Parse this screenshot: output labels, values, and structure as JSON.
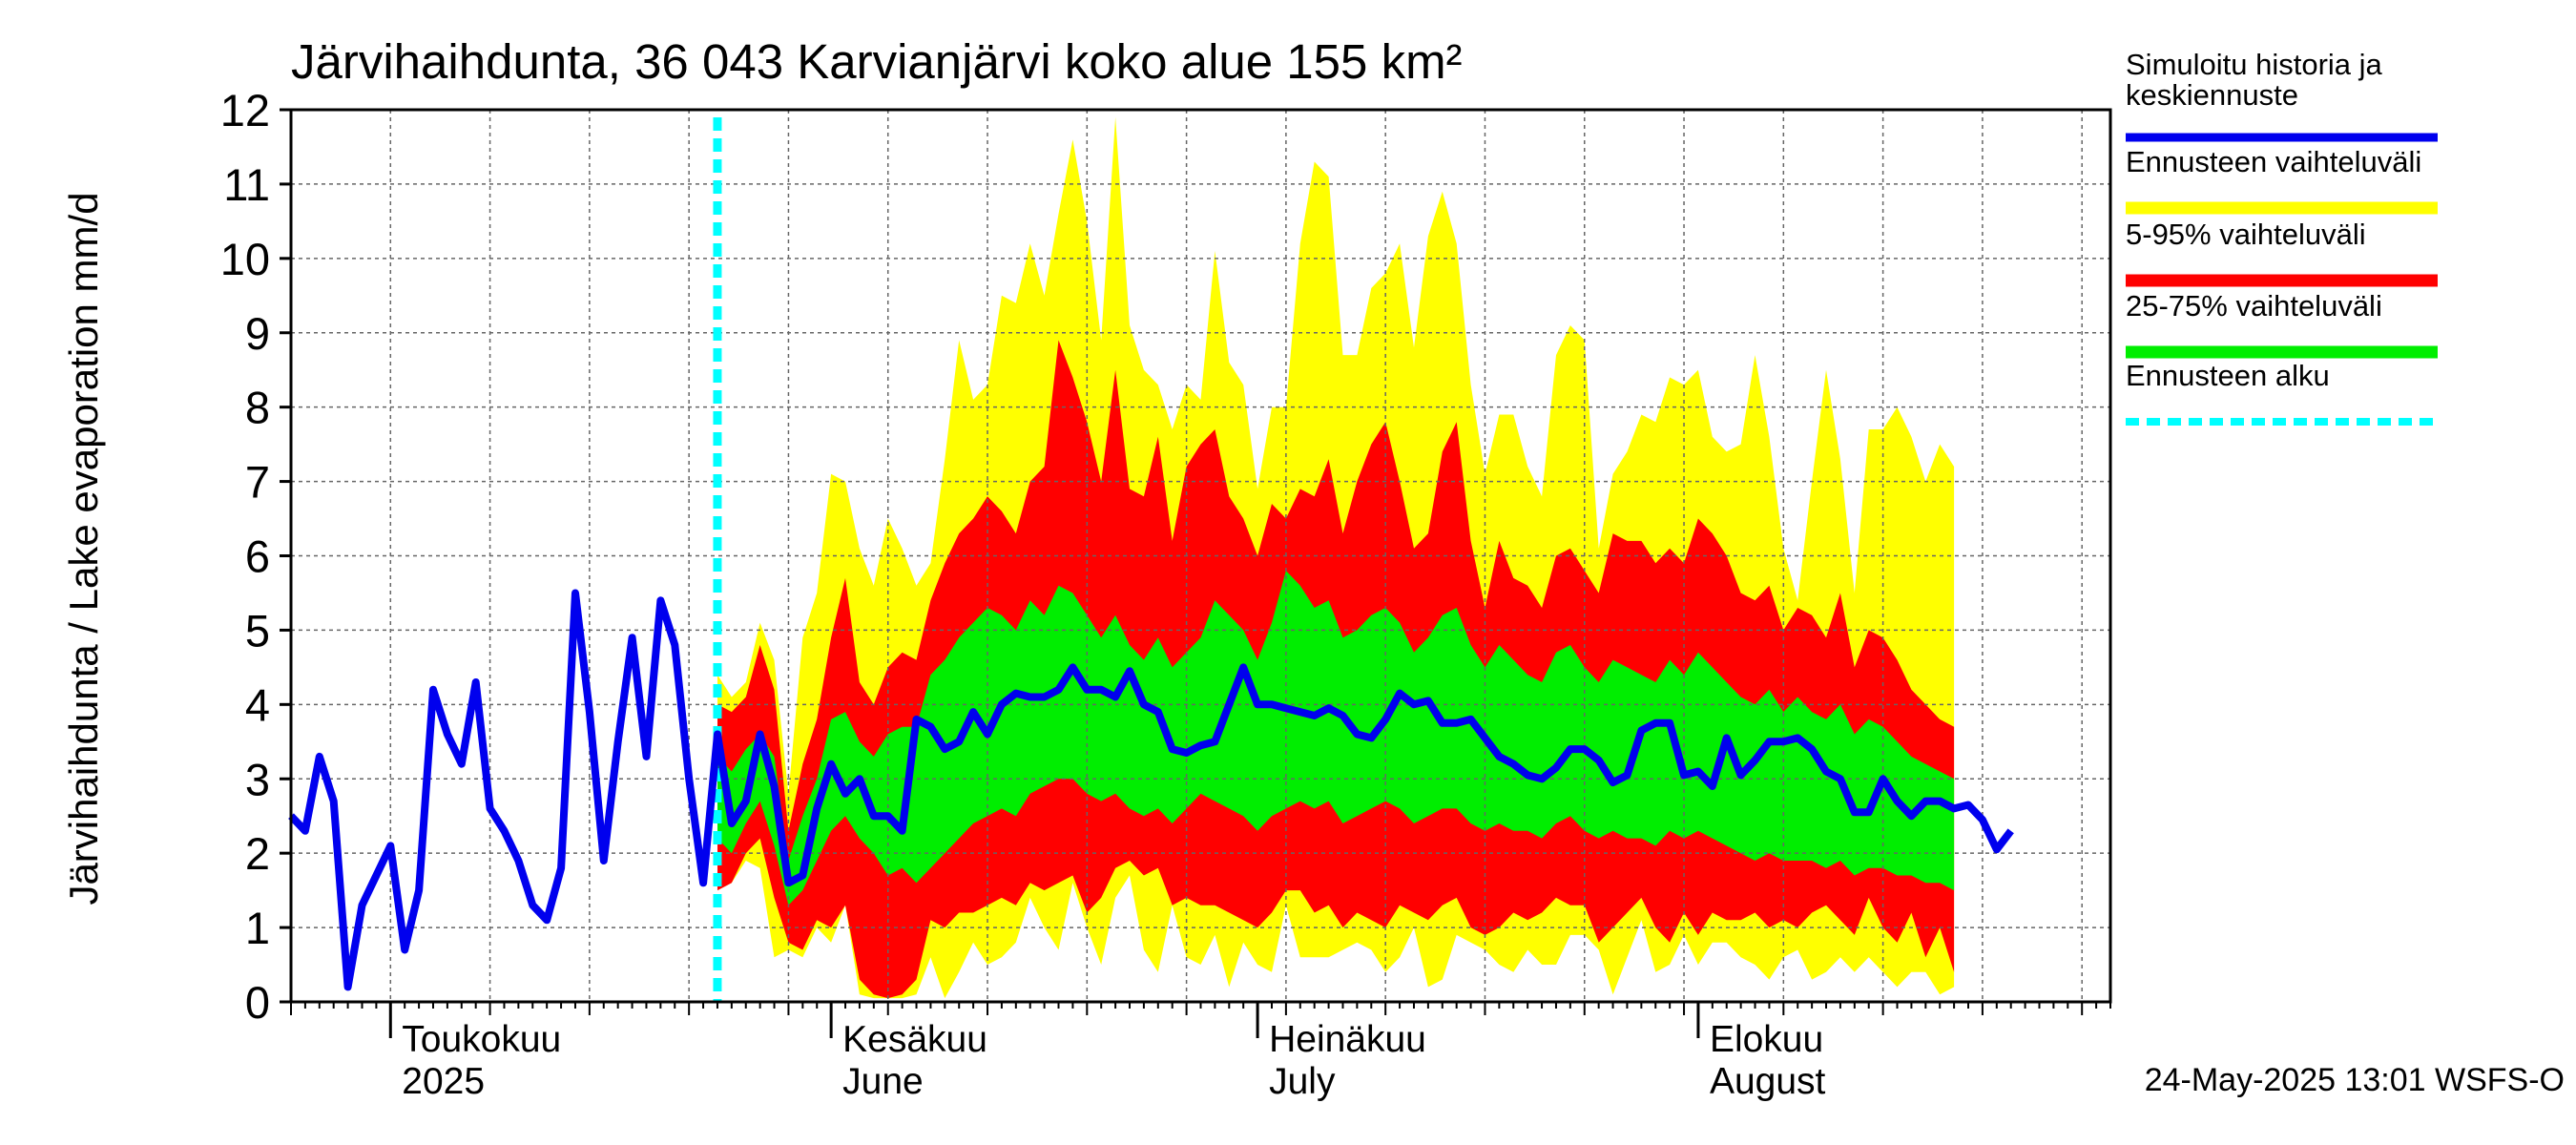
{
  "chart_data": {
    "type": "area",
    "title": "Järvihaihdunta, 36 043 Karvianjärvi koko alue 155 km²",
    "ylabel": "Järvihaihdunta / Lake evaporation   mm/d",
    "ylim": [
      0,
      12
    ],
    "yticks": [
      0,
      1,
      2,
      3,
      4,
      5,
      6,
      7,
      8,
      9,
      10,
      11,
      12
    ],
    "xlim": [
      "2025-04-24",
      "2025-08-30"
    ],
    "grid": true,
    "legend_position": "right",
    "month_labels": [
      {
        "date": "2025-05-01",
        "line1": "Toukokuu",
        "line2": "2025"
      },
      {
        "date": "2025-06-01",
        "line1": "Kesäkuu",
        "line2": "June"
      },
      {
        "date": "2025-07-01",
        "line1": "Heinäkuu",
        "line2": "July"
      },
      {
        "date": "2025-08-01",
        "line1": "Elokuu",
        "line2": "August"
      }
    ],
    "forecast_start": "2025-05-24",
    "footer": "24-May-2025 13:01 WSFS-O",
    "colors": {
      "history": "#0000ee",
      "range_full": "#ffff00",
      "range_5_95": "#ff0000",
      "range_25_75": "#00ee00",
      "forecast_start": "#00ffff",
      "grid": "#666666"
    },
    "legend": [
      {
        "label": "Simuloitu historia ja keskiennuste",
        "key": "history"
      },
      {
        "label": "Ennusteen vaihteluväli",
        "key": "range_full"
      },
      {
        "label": "5-95% vaihteluväli",
        "key": "range_5_95"
      },
      {
        "label": "25-75% vaihteluväli",
        "key": "range_25_75"
      },
      {
        "label": "Ennusteen alku",
        "key": "forecast_start"
      }
    ],
    "series": [
      {
        "name": "Simuloitu historia ja keskiennuste",
        "start_date": "2025-04-24",
        "values": [
          2.5,
          2.3,
          3.3,
          2.7,
          0.2,
          1.3,
          1.7,
          2.1,
          0.7,
          1.5,
          4.2,
          3.6,
          3.2,
          4.3,
          2.6,
          2.3,
          1.9,
          1.3,
          1.1,
          1.8,
          5.5,
          3.9,
          1.9,
          3.5,
          4.9,
          3.3,
          5.4,
          4.8,
          3.0,
          1.6,
          3.6,
          2.4,
          2.7,
          3.6,
          2.9,
          1.6,
          1.7,
          2.6,
          3.2,
          2.8,
          3.0,
          2.5,
          2.5,
          2.3,
          3.8,
          3.7,
          3.4,
          3.5,
          3.9,
          3.6,
          4.0,
          4.15,
          4.1,
          4.1,
          4.2,
          4.5,
          4.2,
          4.2,
          4.1,
          4.45,
          4.0,
          3.9,
          3.4,
          3.35,
          3.45,
          3.5,
          4.0,
          4.5,
          4.0,
          4.0,
          3.95,
          3.9,
          3.85,
          3.95,
          3.85,
          3.6,
          3.55,
          3.8,
          4.15,
          4.0,
          4.05,
          3.75,
          3.75,
          3.8,
          3.55,
          3.3,
          3.2,
          3.05,
          3.0,
          3.15,
          3.4,
          3.4,
          3.25,
          2.95,
          3.05,
          3.65,
          3.75,
          3.75,
          3.05,
          3.1,
          2.9,
          3.55,
          3.05,
          3.25,
          3.5,
          3.5,
          3.55,
          3.4,
          3.1,
          3.0,
          2.55,
          2.55,
          3.0,
          2.7,
          2.5,
          2.7,
          2.7,
          2.6,
          2.65,
          2.45,
          2.05,
          2.3
        ]
      }
    ],
    "bands": {
      "start_date": "2025-05-24",
      "range_full_upper": [
        4.4,
        4.1,
        4.3,
        5.1,
        4.6,
        2.8,
        4.9,
        5.5,
        7.1,
        7.0,
        6.1,
        5.6,
        6.5,
        6.1,
        5.6,
        5.9,
        7.3,
        8.9,
        8.1,
        8.3,
        9.5,
        9.4,
        10.2,
        9.5,
        10.6,
        11.6,
        10.5,
        8.9,
        11.9,
        9.1,
        8.5,
        8.3,
        7.7,
        8.3,
        8.1,
        10.1,
        8.6,
        8.3,
        6.9,
        8.0,
        8.0,
        10.2,
        11.3,
        11.1,
        8.7,
        8.7,
        9.6,
        9.8,
        10.2,
        8.8,
        10.3,
        10.9,
        10.2,
        8.3,
        7.1,
        7.9,
        7.9,
        7.2,
        6.8,
        8.7,
        9.1,
        8.9,
        6.1,
        7.1,
        7.4,
        7.9,
        7.8,
        8.4,
        8.3,
        8.5,
        7.6,
        7.4,
        7.5,
        8.7,
        7.6,
        6.1,
        5.4,
        7.0,
        8.5,
        7.3,
        5.5,
        7.7,
        7.7,
        8.0,
        7.6,
        7.0,
        7.5,
        7.2
      ],
      "p95": [
        4.0,
        3.9,
        4.1,
        4.8,
        4.2,
        2.3,
        3.2,
        3.8,
        4.9,
        5.7,
        4.3,
        4.0,
        4.5,
        4.7,
        4.6,
        5.4,
        5.9,
        6.3,
        6.5,
        6.8,
        6.6,
        6.3,
        7.0,
        7.2,
        8.9,
        8.4,
        7.8,
        7.0,
        8.5,
        6.9,
        6.8,
        7.6,
        6.2,
        7.2,
        7.5,
        7.7,
        6.8,
        6.5,
        6.0,
        6.7,
        6.5,
        6.9,
        6.8,
        7.3,
        6.3,
        7.0,
        7.5,
        7.8,
        7.0,
        6.1,
        6.3,
        7.4,
        7.8,
        6.2,
        5.3,
        6.2,
        5.7,
        5.6,
        5.3,
        6.0,
        6.1,
        5.8,
        5.5,
        6.3,
        6.2,
        6.2,
        5.9,
        6.1,
        5.9,
        6.5,
        6.3,
        6.0,
        5.5,
        5.4,
        5.6,
        5.0,
        5.3,
        5.2,
        4.9,
        5.5,
        4.5,
        5.0,
        4.9,
        4.6,
        4.2,
        4.0,
        3.8,
        3.7
      ],
      "p75": [
        3.3,
        3.1,
        3.4,
        3.6,
        3.3,
        1.9,
        2.5,
        3.0,
        3.8,
        3.9,
        3.5,
        3.3,
        3.6,
        3.7,
        3.7,
        4.4,
        4.6,
        4.9,
        5.1,
        5.3,
        5.2,
        5.0,
        5.4,
        5.2,
        5.6,
        5.5,
        5.2,
        4.9,
        5.2,
        4.8,
        4.6,
        4.9,
        4.5,
        4.7,
        4.9,
        5.4,
        5.2,
        5.0,
        4.6,
        5.1,
        5.8,
        5.6,
        5.3,
        5.4,
        4.9,
        5.0,
        5.2,
        5.3,
        5.1,
        4.7,
        4.9,
        5.2,
        5.3,
        4.8,
        4.5,
        4.8,
        4.6,
        4.4,
        4.3,
        4.7,
        4.8,
        4.5,
        4.3,
        4.6,
        4.5,
        4.4,
        4.3,
        4.6,
        4.4,
        4.7,
        4.5,
        4.3,
        4.1,
        4.0,
        4.2,
        3.9,
        4.1,
        3.9,
        3.8,
        4.0,
        3.6,
        3.8,
        3.7,
        3.5,
        3.3,
        3.2,
        3.1,
        3.0
      ],
      "p25": [
        2.2,
        2.0,
        2.4,
        2.7,
        2.1,
        1.3,
        1.5,
        1.9,
        2.3,
        2.5,
        2.2,
        2.0,
        1.7,
        1.8,
        1.6,
        1.8,
        2.0,
        2.2,
        2.4,
        2.5,
        2.6,
        2.5,
        2.8,
        2.9,
        3.0,
        3.0,
        2.8,
        2.7,
        2.8,
        2.6,
        2.5,
        2.6,
        2.4,
        2.6,
        2.8,
        2.7,
        2.6,
        2.5,
        2.3,
        2.5,
        2.6,
        2.7,
        2.6,
        2.7,
        2.4,
        2.5,
        2.6,
        2.7,
        2.6,
        2.4,
        2.5,
        2.6,
        2.6,
        2.4,
        2.3,
        2.4,
        2.3,
        2.3,
        2.2,
        2.4,
        2.5,
        2.3,
        2.2,
        2.3,
        2.2,
        2.2,
        2.1,
        2.3,
        2.2,
        2.3,
        2.2,
        2.1,
        2.0,
        1.9,
        2.0,
        1.9,
        1.9,
        1.9,
        1.8,
        1.9,
        1.7,
        1.8,
        1.8,
        1.7,
        1.7,
        1.6,
        1.6,
        1.5
      ],
      "p5": [
        1.5,
        1.6,
        2.0,
        2.2,
        1.4,
        0.8,
        0.7,
        1.1,
        1.0,
        1.3,
        0.3,
        0.1,
        0.05,
        0.1,
        0.3,
        1.1,
        1.0,
        1.2,
        1.2,
        1.3,
        1.4,
        1.3,
        1.6,
        1.5,
        1.6,
        1.7,
        1.2,
        1.4,
        1.8,
        1.9,
        1.7,
        1.8,
        1.3,
        1.4,
        1.3,
        1.3,
        1.2,
        1.1,
        1.0,
        1.2,
        1.5,
        1.5,
        1.2,
        1.3,
        1.0,
        1.2,
        1.1,
        1.0,
        1.3,
        1.2,
        1.1,
        1.3,
        1.4,
        1.0,
        0.9,
        1.0,
        1.2,
        1.1,
        1.2,
        1.4,
        1.3,
        1.3,
        0.8,
        1.0,
        1.2,
        1.4,
        1.0,
        0.8,
        1.2,
        0.9,
        1.2,
        1.1,
        1.1,
        1.2,
        1.0,
        1.1,
        1.0,
        1.2,
        1.3,
        1.1,
        0.9,
        1.4,
        1.0,
        0.8,
        1.2,
        0.6,
        1.0,
        0.4
      ],
      "range_full_lower": [
        1.5,
        1.6,
        1.9,
        1.8,
        0.6,
        0.7,
        0.6,
        1.0,
        0.8,
        1.3,
        0.1,
        0.05,
        0.05,
        0.05,
        0.1,
        0.6,
        0.05,
        0.4,
        0.8,
        0.5,
        0.6,
        0.8,
        1.4,
        1.0,
        0.7,
        1.6,
        1.0,
        0.5,
        1.4,
        1.7,
        0.7,
        0.4,
        1.3,
        0.6,
        0.5,
        0.9,
        0.2,
        0.8,
        0.5,
        0.4,
        1.3,
        0.6,
        0.6,
        0.6,
        0.7,
        0.8,
        0.7,
        0.4,
        0.6,
        1.0,
        0.2,
        0.3,
        0.9,
        0.8,
        0.7,
        0.5,
        0.4,
        0.7,
        0.5,
        0.5,
        0.9,
        0.9,
        0.7,
        0.1,
        0.6,
        1.1,
        0.4,
        0.5,
        0.9,
        0.5,
        0.8,
        0.8,
        0.6,
        0.5,
        0.3,
        0.6,
        0.7,
        0.3,
        0.4,
        0.6,
        0.4,
        0.6,
        0.4,
        0.2,
        0.4,
        0.4,
        0.1,
        0.2
      ]
    }
  }
}
